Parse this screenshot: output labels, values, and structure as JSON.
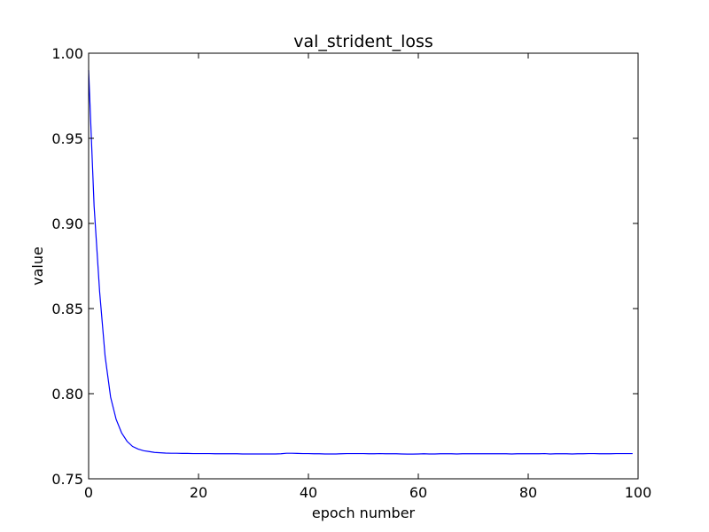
{
  "chart_data": {
    "type": "line",
    "title": "val_strident_loss",
    "xlabel": "epoch number",
    "ylabel": "value",
    "xlim": [
      0,
      100
    ],
    "ylim": [
      0.75,
      1.0
    ],
    "x_ticks": [
      0,
      20,
      40,
      60,
      80,
      100
    ],
    "y_ticks": [
      0.75,
      0.8,
      0.85,
      0.9,
      0.95,
      1.0
    ],
    "x_tick_labels": [
      "0",
      "20",
      "40",
      "60",
      "80",
      "100"
    ],
    "y_tick_labels": [
      "0.75",
      "0.80",
      "0.85",
      "0.90",
      "0.95",
      "1.00"
    ],
    "grid": false,
    "line_color": "#0000ff",
    "series": [
      {
        "x": [
          0,
          1,
          2,
          3,
          4,
          5,
          6,
          7,
          8,
          9,
          10,
          11,
          12,
          13,
          14,
          15,
          16,
          17,
          18,
          19,
          20,
          21,
          22,
          23,
          24,
          25,
          26,
          27,
          28,
          29,
          30,
          31,
          32,
          33,
          34,
          35,
          36,
          37,
          38,
          39,
          40,
          41,
          42,
          43,
          44,
          45,
          46,
          47,
          48,
          49,
          50,
          51,
          52,
          53,
          54,
          55,
          56,
          57,
          58,
          59,
          60,
          61,
          62,
          63,
          64,
          65,
          66,
          67,
          68,
          69,
          70,
          71,
          72,
          73,
          74,
          75,
          76,
          77,
          78,
          79,
          80,
          81,
          82,
          83,
          84,
          85,
          86,
          87,
          88,
          89,
          90,
          91,
          92,
          93,
          94,
          95,
          96,
          97,
          98,
          99
        ],
        "values": [
          0.99,
          0.91,
          0.86,
          0.822,
          0.798,
          0.785,
          0.777,
          0.772,
          0.769,
          0.7675,
          0.7665,
          0.766,
          0.7655,
          0.7653,
          0.7651,
          0.765,
          0.765,
          0.7649,
          0.7649,
          0.7648,
          0.7648,
          0.7648,
          0.7648,
          0.7647,
          0.7647,
          0.7647,
          0.7647,
          0.7647,
          0.7646,
          0.7646,
          0.7646,
          0.7646,
          0.7646,
          0.7646,
          0.7646,
          0.7647,
          0.765,
          0.765,
          0.7649,
          0.7648,
          0.7648,
          0.7647,
          0.7647,
          0.7646,
          0.7646,
          0.7646,
          0.7647,
          0.7648,
          0.7648,
          0.7648,
          0.7648,
          0.7647,
          0.7647,
          0.7648,
          0.7647,
          0.7647,
          0.7647,
          0.7646,
          0.7645,
          0.7645,
          0.7646,
          0.7647,
          0.7646,
          0.7646,
          0.7647,
          0.7647,
          0.7647,
          0.7646,
          0.7647,
          0.7647,
          0.7647,
          0.7647,
          0.7647,
          0.7647,
          0.7647,
          0.7647,
          0.7647,
          0.7646,
          0.7647,
          0.7647,
          0.7647,
          0.7647,
          0.7647,
          0.7648,
          0.7646,
          0.7647,
          0.7647,
          0.7647,
          0.7646,
          0.7647,
          0.7647,
          0.7648,
          0.7648,
          0.7647,
          0.7647,
          0.7647,
          0.7648,
          0.7648,
          0.7648,
          0.7648
        ]
      }
    ]
  }
}
